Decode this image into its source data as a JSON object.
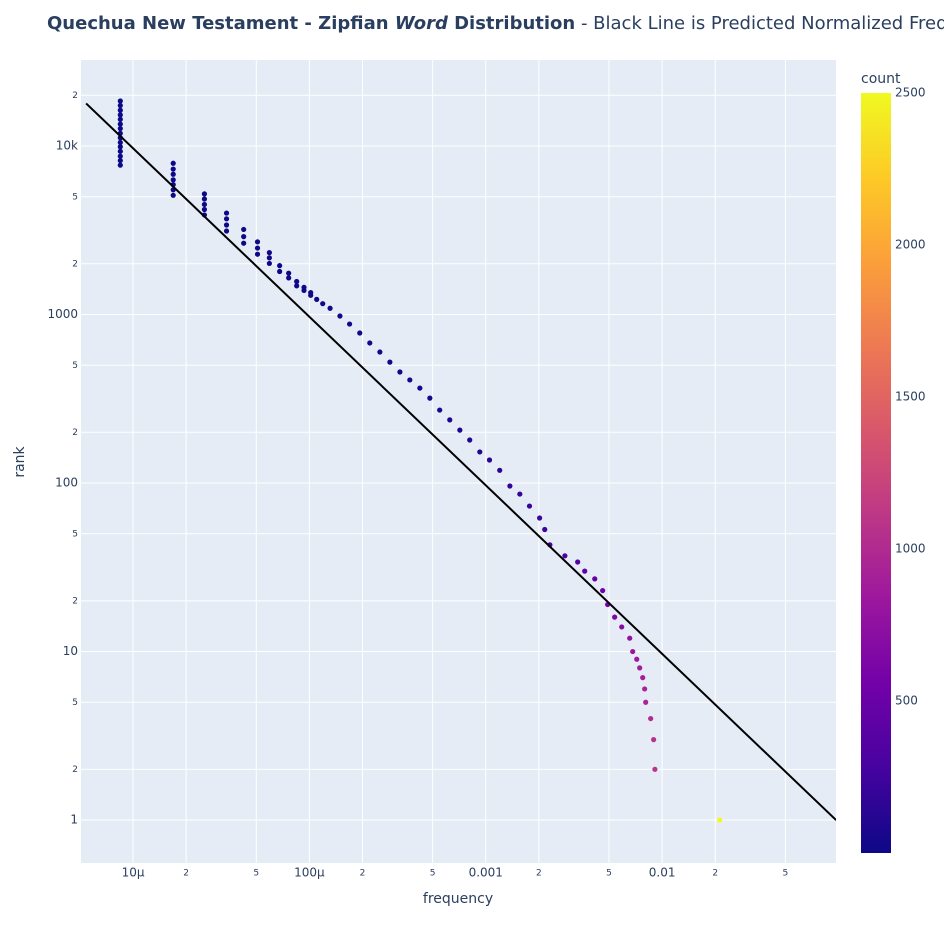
{
  "chart_data": {
    "type": "scatter",
    "title_parts": [
      "Quechua New Testament - Zipfian ",
      "Word",
      " Distribution"
    ],
    "subtitle": " - Black Line is Predicted Normalized Frequency",
    "x_label": "frequency",
    "y_label": "rank",
    "xscale": "log",
    "yscale": "log",
    "grid": true,
    "xlim": [
      5.07e-06,
      0.0968
    ],
    "ylim": [
      0.556,
      32400
    ],
    "xticks": [
      {
        "value": 1e-05,
        "label": "10μ"
      },
      {
        "value": 2e-05,
        "label": "2"
      },
      {
        "value": 5e-05,
        "label": "5"
      },
      {
        "value": 0.0001,
        "label": "100μ"
      },
      {
        "value": 0.0002,
        "label": "2"
      },
      {
        "value": 0.0005,
        "label": "5"
      },
      0.001,
      {
        "value": 0.002,
        "label": "2"
      },
      {
        "value": 0.005,
        "label": "5"
      },
      0.01,
      {
        "value": 0.02,
        "label": "2"
      },
      {
        "value": 0.05,
        "label": "5"
      }
    ],
    "yticks": [
      1,
      2,
      5,
      10,
      {
        "value": 20,
        "label": "2"
      },
      {
        "value": 50,
        "label": "5"
      },
      100,
      {
        "value": 200,
        "label": "2"
      },
      {
        "value": 500,
        "label": "5"
      },
      1000,
      {
        "value": 2000,
        "label": "2"
      },
      {
        "value": 5000,
        "label": "5"
      },
      {
        "value": 10000,
        "label": "10k"
      },
      {
        "value": 20000,
        "label": "2"
      }
    ],
    "colorbar_title": "count",
    "colorlim": [
      1,
      2500
    ],
    "cticks": [
      500,
      1000,
      1500,
      2000,
      2500
    ],
    "colorscale": [
      "#0d0887",
      "#46039f",
      "#7201a8",
      "#9c179e",
      "#bd3786",
      "#d8576b",
      "#ed7953",
      "#fb9f3a",
      "#fdca26",
      "#f0f921"
    ],
    "series": [
      {
        "x": [
          8.47e-06,
          8.47e-06,
          8.47e-06,
          8.47e-06,
          8.47e-06,
          8.47e-06,
          8.47e-06,
          8.47e-06,
          8.47e-06,
          8.47e-06,
          8.47e-06,
          8.47e-06,
          8.47e-06,
          8.47e-06,
          8.47e-06,
          1.69e-05,
          1.69e-05,
          1.69e-05,
          1.69e-05,
          1.69e-05,
          1.69e-05,
          1.69e-05,
          2.54e-05,
          2.54e-05,
          2.54e-05,
          2.54e-05,
          2.54e-05,
          3.39e-05,
          3.39e-05,
          3.39e-05,
          3.39e-05,
          4.24e-05,
          4.24e-05,
          4.24e-05,
          5.08e-05,
          5.08e-05,
          5.08e-05,
          5.93e-05,
          5.93e-05,
          5.93e-05,
          6.78e-05,
          6.78e-05,
          7.63e-05,
          7.63e-05,
          8.47e-05,
          8.47e-05,
          9.32e-05,
          9.32e-05,
          0.0001017,
          0.0001017,
          0.00011,
          0.000119,
          0.000131,
          0.000149,
          0.000169,
          0.000193,
          0.00022,
          0.000251,
          0.000286,
          0.000326,
          0.000371,
          0.000423,
          0.000482,
          0.000548,
          0.000625,
          0.000713,
          0.000811,
          0.000925,
          0.00105,
          0.0012,
          0.00137,
          0.00156,
          0.00177,
          0.00202,
          0.00216,
          0.00231,
          0.00281,
          0.00332,
          0.00364,
          0.00415,
          0.0046,
          0.00491,
          0.00538,
          0.0059,
          0.00655,
          0.00681,
          0.00718,
          0.00746,
          0.00776,
          0.00796,
          0.00807,
          0.00861,
          0.00895,
          0.0091,
          0.0212
        ],
        "y": [
          7700,
          8200,
          8700,
          9300,
          9900,
          10500,
          11200,
          11900,
          12700,
          13500,
          14400,
          15300,
          16300,
          17400,
          18500,
          5100,
          5500,
          5900,
          6300,
          6800,
          7300,
          7900,
          3900,
          4200,
          4500,
          4850,
          5200,
          3130,
          3400,
          3700,
          4000,
          2650,
          2900,
          3200,
          2280,
          2480,
          2700,
          2010,
          2170,
          2330,
          1800,
          1950,
          1650,
          1760,
          1480,
          1570,
          1390,
          1450,
          1300,
          1350,
          1230,
          1160,
          1090,
          980,
          878,
          777,
          678,
          599,
          522,
          456,
          409,
          366,
          319,
          271,
          237,
          206,
          180,
          153,
          137,
          119,
          96,
          86,
          73,
          62,
          53,
          43,
          37,
          34,
          30,
          27,
          23,
          19,
          16,
          14,
          12,
          10,
          9,
          8,
          7,
          6,
          5,
          4,
          3,
          2,
          1
        ],
        "count": [
          1,
          1,
          1,
          1,
          1,
          1,
          1,
          1,
          1,
          1,
          1,
          1,
          1,
          1,
          1,
          2,
          2,
          2,
          2,
          2,
          2,
          2,
          3,
          3,
          3,
          3,
          3,
          4,
          4,
          4,
          4,
          5,
          5,
          5,
          6,
          6,
          6,
          7,
          7,
          7,
          8,
          8,
          9,
          9,
          10,
          10,
          11,
          11,
          12,
          12,
          13,
          14,
          15,
          18,
          20,
          23,
          26,
          30,
          34,
          38,
          44,
          50,
          57,
          65,
          74,
          84,
          96,
          109,
          124,
          142,
          162,
          184,
          209,
          238,
          255,
          272,
          331,
          392,
          430,
          490,
          543,
          579,
          635,
          696,
          773,
          804,
          847,
          880,
          916,
          939,
          952,
          1016,
          1056,
          1074,
          2500
        ]
      }
    ],
    "fit_line": {
      "x": [
        5.42e-06,
        0.0969
      ],
      "y": [
        17900,
        1
      ],
      "color": "#000000"
    }
  }
}
